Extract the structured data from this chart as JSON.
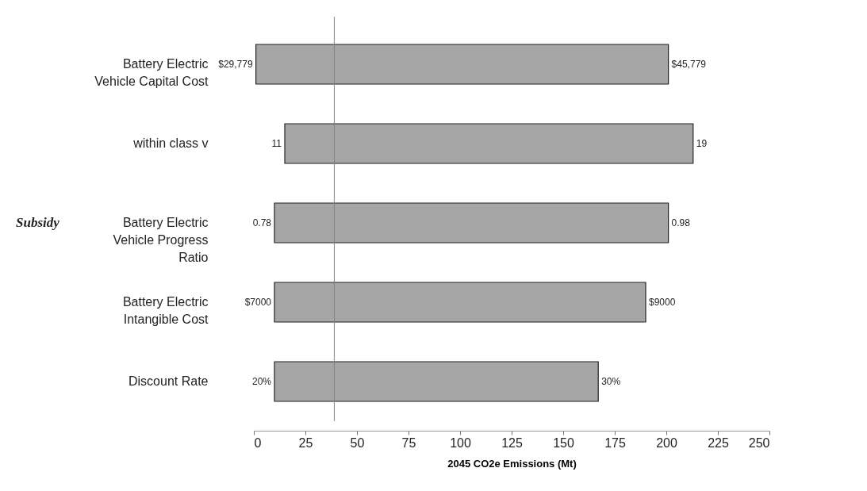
{
  "chart_data": {
    "type": "bar",
    "orientation": "horizontal",
    "xlabel": "2045 CO2e Emissions (Mt)",
    "categories": [
      "Battery Electric\nVehicle Capital Cost",
      "within class v",
      "Battery Electric\nVehicle Progress\nRatio",
      "Battery Electric\nIntangible Cost",
      "Discount Rate"
    ],
    "base": [
      1,
      15,
      10,
      10,
      10
    ],
    "values": [
      200,
      198,
      191,
      180,
      157
    ],
    "color": "#a6a6a6",
    "xlim": [
      0,
      250
    ],
    "xticks": [
      0,
      25,
      50,
      75,
      100,
      125,
      150,
      175,
      200,
      225,
      250
    ],
    "grid": false,
    "ref_lines": [
      {
        "axis": "x",
        "value": 39,
        "color": "#808080"
      }
    ],
    "annotations": [
      {
        "text": "$29,779",
        "x": 1,
        "y": "Battery Electric\nVehicle Capital Cost"
      },
      {
        "text": "$45,779",
        "x": 201,
        "y": "Battery Electric\nVehicle Capital Cost"
      },
      {
        "text": "11",
        "x": 15,
        "y": "within class v"
      },
      {
        "text": "19",
        "x": 213,
        "y": "within class v"
      },
      {
        "text": "0.78",
        "x": 10,
        "y": "Battery Electric\nVehicle Progress\nRatio"
      },
      {
        "text": "0.98",
        "x": 201,
        "y": "Battery Electric\nVehicle Progress\nRatio"
      },
      {
        "text": "$7000",
        "x": 10,
        "y": "Battery Electric\nIntangible Cost"
      },
      {
        "text": "$9000",
        "x": 190,
        "y": "Battery Electric\nIntangible Cost"
      },
      {
        "text": "20%",
        "x": 10,
        "y": "Discount Rate"
      },
      {
        "text": "30%",
        "x": 167,
        "y": "Discount Rate"
      },
      "Subsidy"
    ]
  }
}
